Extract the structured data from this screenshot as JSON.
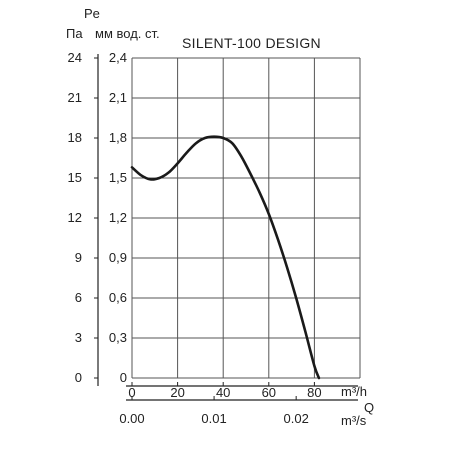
{
  "chart_data": {
    "type": "line",
    "title": "SILENT-100 DESIGN",
    "y_symbol": "Pe",
    "y_unit_left": "Па",
    "y_unit_right": "мм вод. ст.",
    "x_symbol": "Q",
    "x_unit_top": "m³/h",
    "x_unit_bottom": "m³/s",
    "xlim": [
      0,
      100
    ],
    "ylim_pa": [
      0,
      24
    ],
    "ylim_mm": [
      0,
      2.4
    ],
    "x_ticks_m3h": [
      "0",
      "20",
      "40",
      "60",
      "80"
    ],
    "x_ticks_m3s": [
      "0.00",
      "0.01",
      "0.02"
    ],
    "x_ticks_m3s_values": [
      0,
      0.01,
      0.02
    ],
    "y_ticks_pa": [
      "0",
      "3",
      "6",
      "9",
      "12",
      "15",
      "18",
      "21",
      "24"
    ],
    "y_ticks_mm": [
      "0",
      "0,3",
      "0,6",
      "0,9",
      "1,2",
      "1,5",
      "1,8",
      "2,1",
      "2,4"
    ],
    "grid": true,
    "series": [
      {
        "x": [
          0,
          4,
          8,
          12,
          16,
          20,
          24,
          28,
          32,
          36,
          40,
          44,
          48,
          52,
          56,
          60,
          64,
          68,
          72,
          76,
          80,
          82
        ],
        "y": [
          15.8,
          15.2,
          14.9,
          15.0,
          15.4,
          16.1,
          16.9,
          17.6,
          18.0,
          18.1,
          18.0,
          17.6,
          16.6,
          15.3,
          13.9,
          12.3,
          10.4,
          8.3,
          6.0,
          3.5,
          0.9,
          0.0
        ]
      }
    ]
  }
}
